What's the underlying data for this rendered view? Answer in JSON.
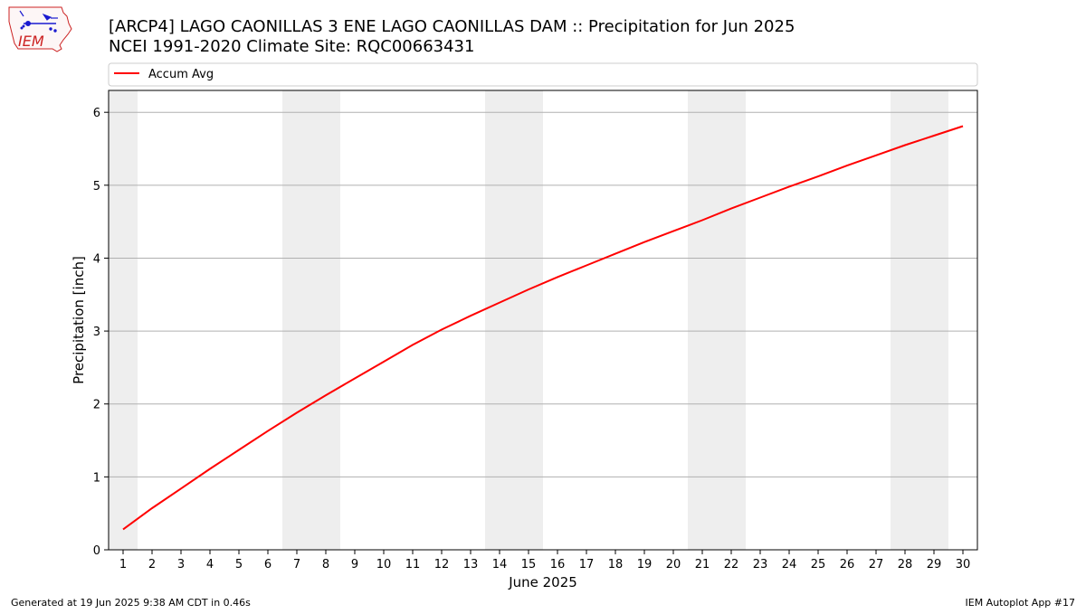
{
  "header": {
    "logo_text": "IEM",
    "title_line1": "[ARCP4] LAGO CAONILLAS 3 ENE LAGO CAONILLAS DAM :: Precipitation for Jun 2025",
    "title_line2": "NCEI 1991-2020 Climate Site: RQC00663431"
  },
  "footer": {
    "generated": "Generated at 19 Jun 2025 9:38 AM CDT in 0.46s",
    "app": "IEM Autoplot App #17"
  },
  "colors": {
    "series": "#ff0000",
    "weekend_band": "#eeeeee",
    "grid": "#b0b0b0",
    "logo": "#cc2222"
  },
  "chart_data": {
    "type": "line",
    "xlabel": "June 2025",
    "ylabel": "Precipitation [inch]",
    "xlim": [
      0.5,
      30.5
    ],
    "ylim": [
      0,
      6.3
    ],
    "yticks": [
      0,
      1,
      2,
      3,
      4,
      5,
      6
    ],
    "x": [
      1,
      2,
      3,
      4,
      5,
      6,
      7,
      8,
      9,
      10,
      11,
      12,
      13,
      14,
      15,
      16,
      17,
      18,
      19,
      20,
      21,
      22,
      23,
      24,
      25,
      26,
      27,
      28,
      29,
      30
    ],
    "xtick_labels": [
      "1",
      "2",
      "3",
      "4",
      "5",
      "6",
      "7",
      "8",
      "9",
      "10",
      "11",
      "12",
      "13",
      "14",
      "15",
      "16",
      "17",
      "18",
      "19",
      "20",
      "21",
      "22",
      "23",
      "24",
      "25",
      "26",
      "27",
      "28",
      "29",
      "30"
    ],
    "shaded_days": [
      1,
      7,
      8,
      14,
      15,
      21,
      22,
      28,
      29
    ],
    "grid": "horizontal",
    "legend_position": "top",
    "series": [
      {
        "name": "Accum Avg",
        "values": [
          0.28,
          0.57,
          0.84,
          1.11,
          1.37,
          1.63,
          1.88,
          2.12,
          2.35,
          2.58,
          2.81,
          3.02,
          3.21,
          3.39,
          3.57,
          3.74,
          3.9,
          4.06,
          4.22,
          4.37,
          4.52,
          4.68,
          4.83,
          4.98,
          5.12,
          5.27,
          5.41,
          5.55,
          5.68,
          5.81
        ]
      }
    ]
  }
}
